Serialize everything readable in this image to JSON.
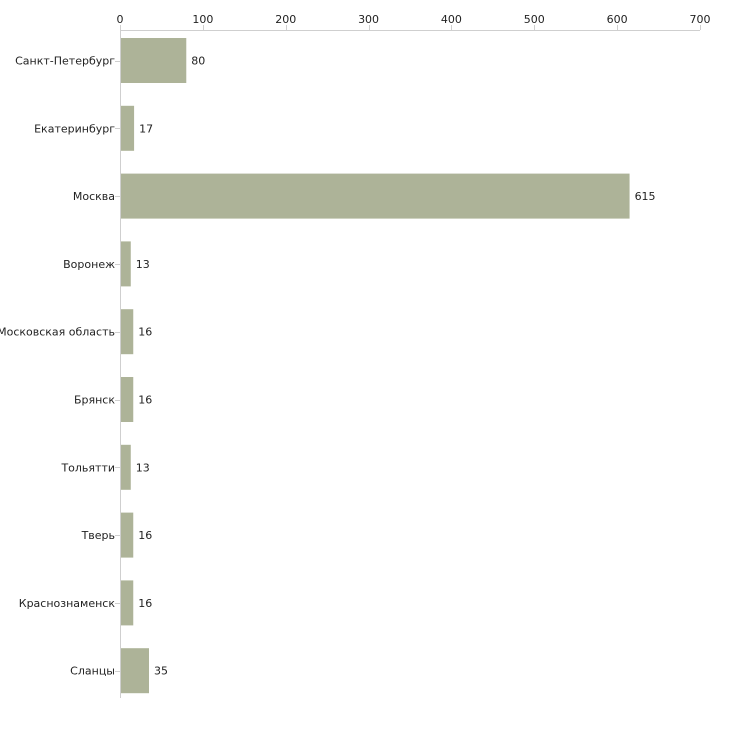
{
  "chart_data": {
    "type": "bar",
    "orientation": "horizontal",
    "title": "",
    "xlabel": "",
    "ylabel": "",
    "xlim": [
      0,
      700
    ],
    "ticks": [
      0,
      100,
      200,
      300,
      400,
      500,
      600,
      700
    ],
    "tick_labels": [
      "0",
      "100",
      "200",
      "300",
      "400",
      "500",
      "600",
      "700"
    ],
    "categories": [
      "Санкт-Петербург",
      "Екатеринбург",
      "Москва",
      "Воронеж",
      "Московская область",
      "Брянск",
      "Тольятти",
      "Тверь",
      "Краснознаменск",
      "Сланцы"
    ],
    "values": [
      80,
      17,
      615,
      13,
      16,
      16,
      13,
      16,
      16,
      35
    ],
    "value_labels": [
      "80",
      "17",
      "615",
      "13",
      "16",
      "16",
      "13",
      "16",
      "16",
      "35"
    ],
    "bar_color": "#adb398",
    "axis_color": "#cfcfcf",
    "text_color": "#222222",
    "grid": false,
    "legend": "none",
    "axis_position": "top"
  }
}
